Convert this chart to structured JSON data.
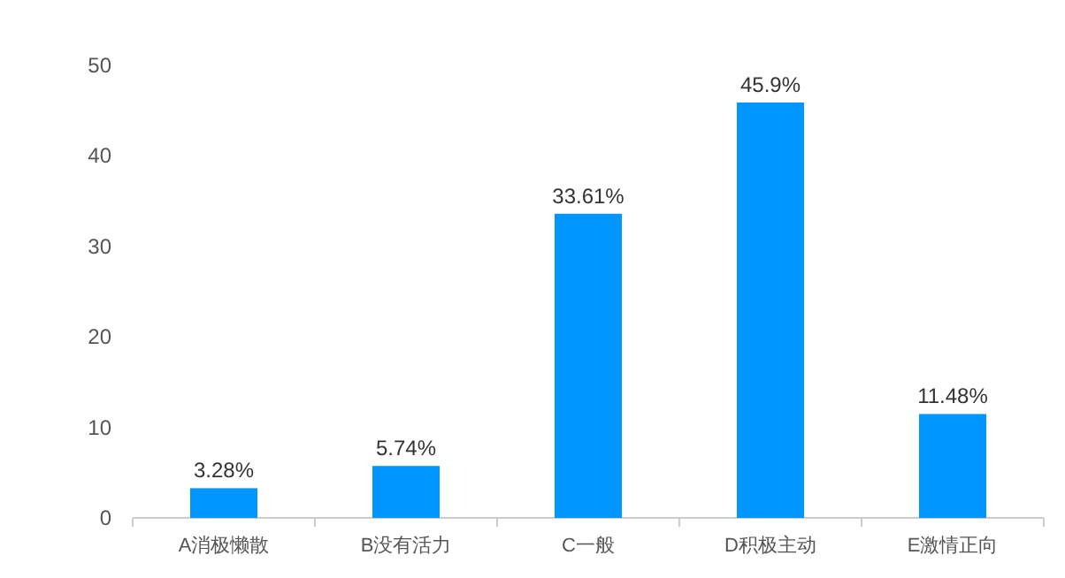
{
  "chart_data": {
    "type": "bar",
    "categories": [
      "A消极懒散",
      "B没有活力",
      "C一般",
      "D积极主动",
      "E激情正向"
    ],
    "values": [
      3.28,
      5.74,
      33.61,
      45.9,
      11.48
    ],
    "value_labels": [
      "3.28%",
      "5.74%",
      "33.61%",
      "45.9%",
      "11.48%"
    ],
    "color": "#0096ff",
    "ylim": [
      0,
      50
    ],
    "yticks": [
      0,
      10,
      20,
      30,
      40,
      50
    ]
  }
}
